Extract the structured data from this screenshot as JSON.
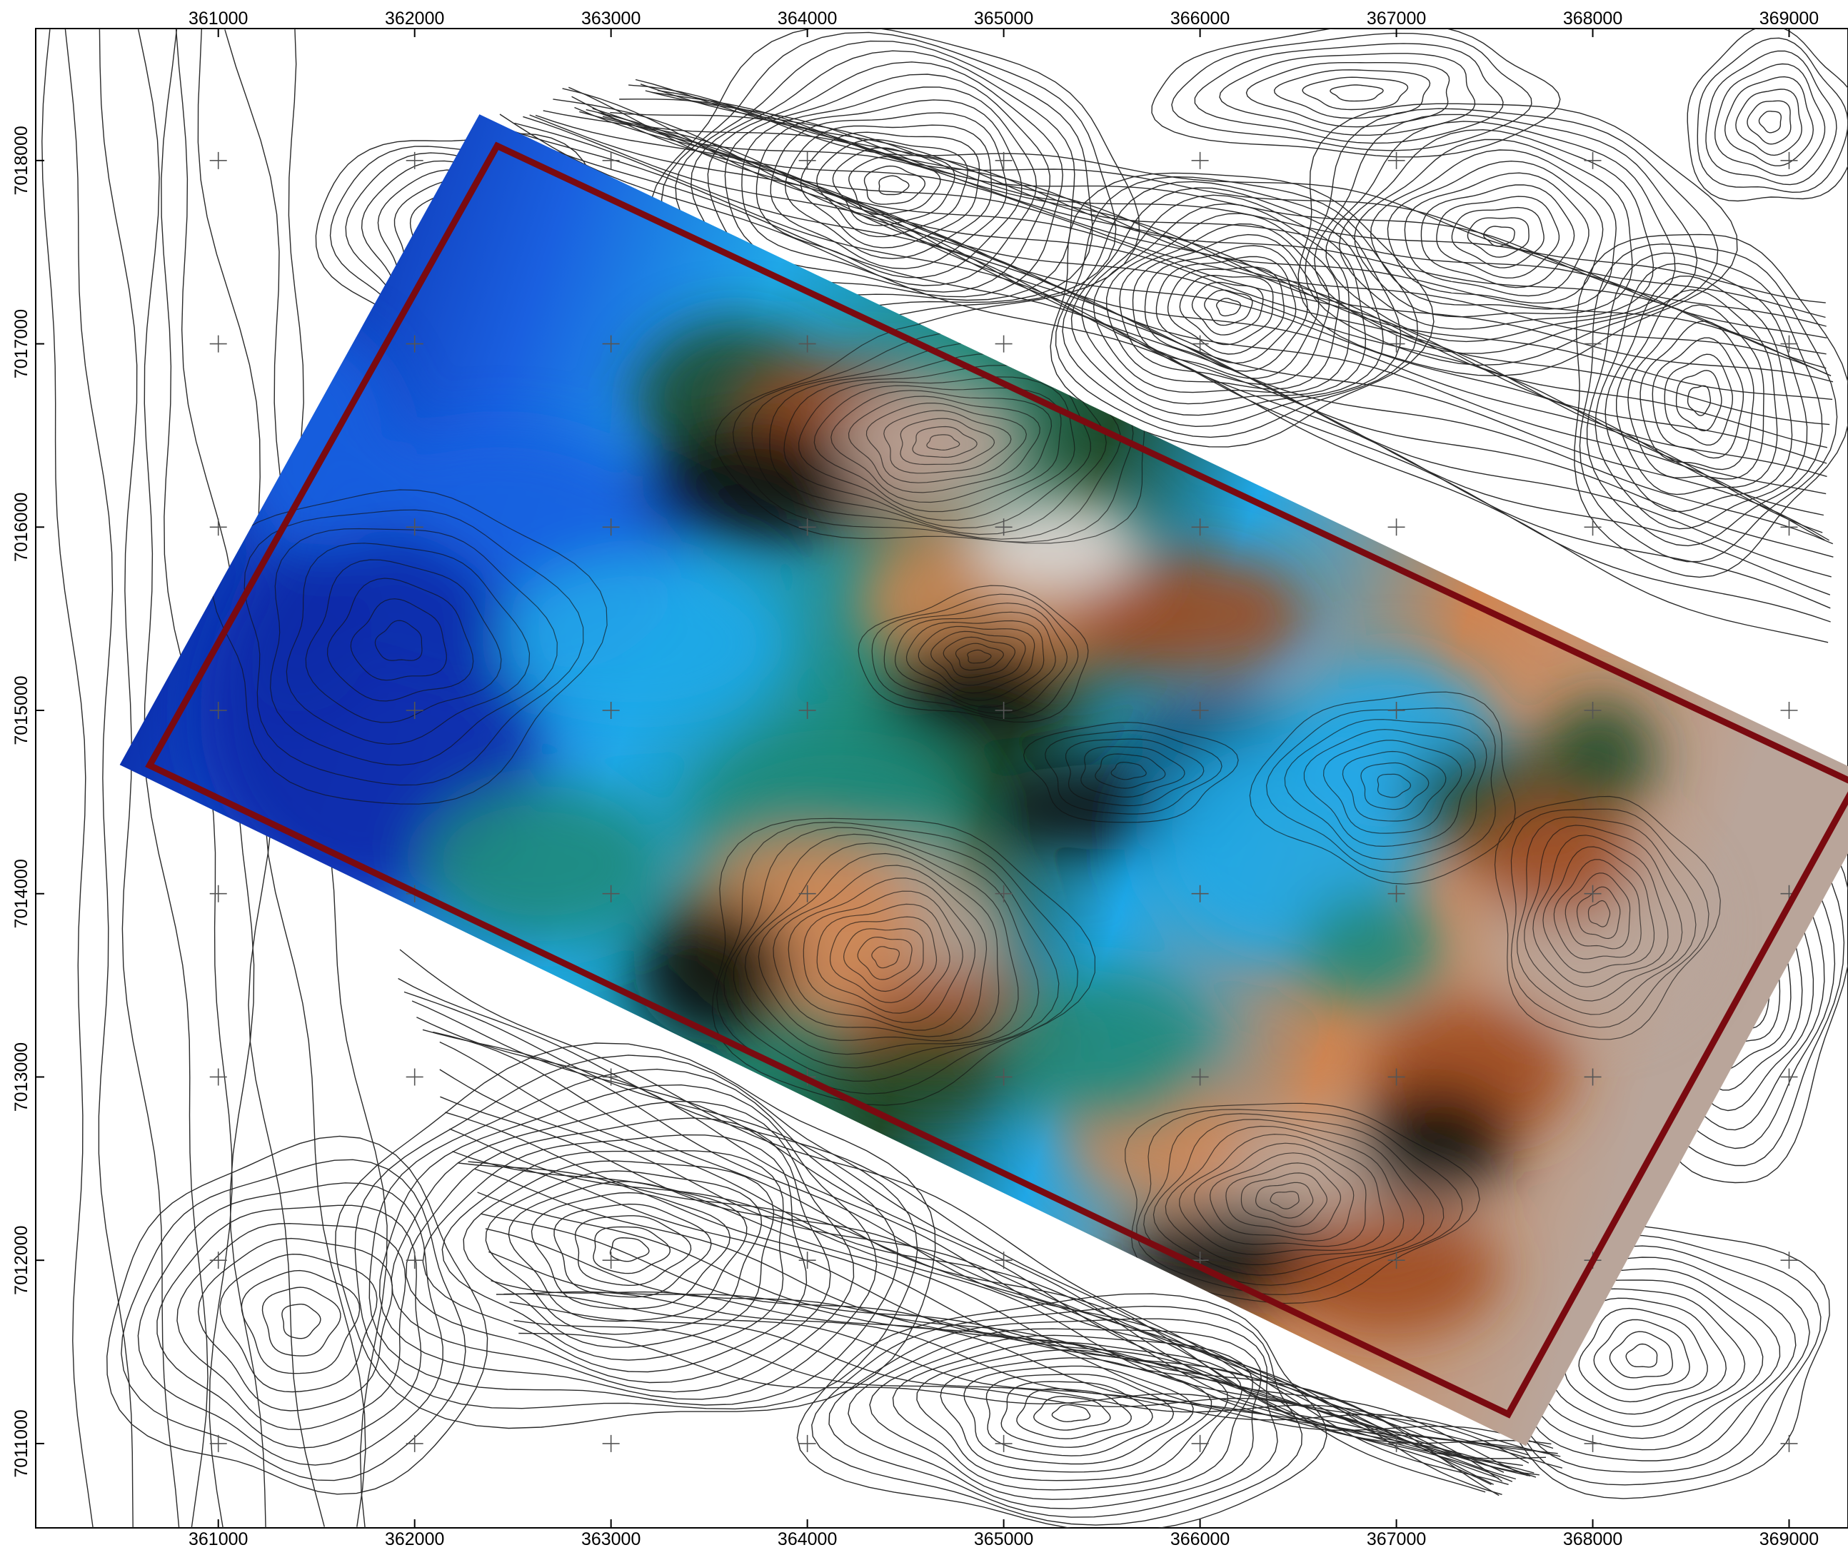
{
  "map": {
    "x_axis": {
      "ticks": [
        {
          "value": 361000,
          "label": "361000"
        },
        {
          "value": 362000,
          "label": "362000"
        },
        {
          "value": 363000,
          "label": "363000"
        },
        {
          "value": 364000,
          "label": "364000"
        },
        {
          "value": 365000,
          "label": "365000"
        },
        {
          "value": 366000,
          "label": "366000"
        },
        {
          "value": 367000,
          "label": "367000"
        },
        {
          "value": 368000,
          "label": "368000"
        },
        {
          "value": 369000,
          "label": "369000"
        }
      ],
      "range": [
        360070,
        369300
      ]
    },
    "y_axis": {
      "ticks": [
        {
          "value": 7018000,
          "label": "7018000"
        },
        {
          "value": 7017000,
          "label": "7017000"
        },
        {
          "value": 7016000,
          "label": "7016000"
        },
        {
          "value": 7015000,
          "label": "7015000"
        },
        {
          "value": 7014000,
          "label": "7014000"
        },
        {
          "value": 7013000,
          "label": "7013000"
        },
        {
          "value": 7012000,
          "label": "7012000"
        },
        {
          "value": 7011000,
          "label": "7011000"
        }
      ],
      "range": [
        7010540,
        7018720
      ]
    },
    "survey_polygon": {
      "color": "#7a0a10",
      "vertices": [
        [
          362420,
          7018080
        ],
        [
          369340,
          7014600
        ],
        [
          367570,
          7011160
        ],
        [
          360650,
          7014700
        ]
      ]
    },
    "relief_palette": [
      "#0a2aa8",
      "#1a60e0",
      "#20a8e8",
      "#1e8a7a",
      "#1f4a2a",
      "#0a0f08",
      "#a04a20",
      "#cf8552",
      "#b9a59a",
      "#dcdcdc"
    ],
    "contour_color": "#2a2a2a",
    "grid_cross_color": "#555555"
  }
}
